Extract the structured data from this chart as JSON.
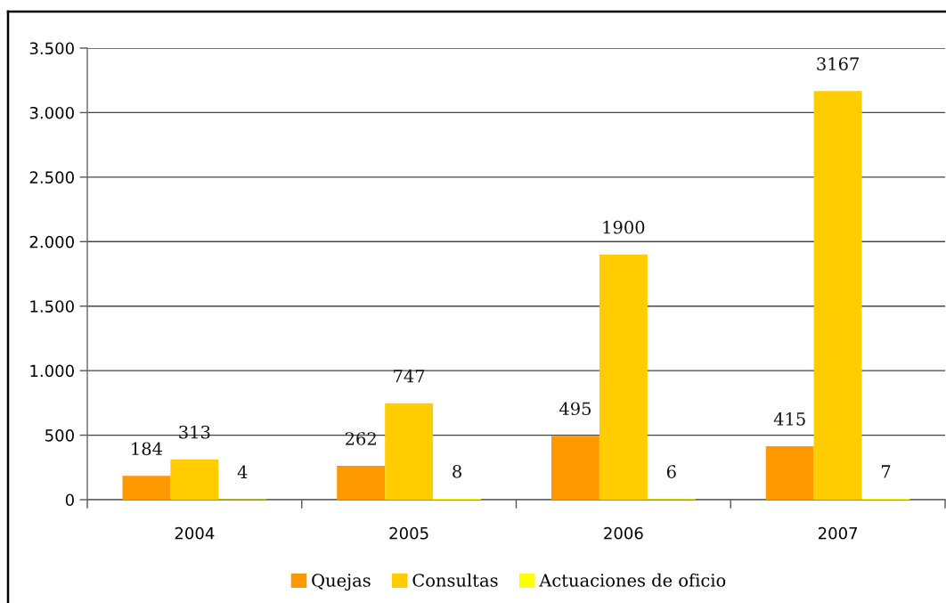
{
  "chart_data": {
    "type": "bar",
    "categories": [
      "2004",
      "2005",
      "2006",
      "2007"
    ],
    "series": [
      {
        "name": "Quejas",
        "color": "#ff9900",
        "values": [
          184,
          262,
          495,
          415
        ]
      },
      {
        "name": "Consultas",
        "color": "#ffcc00",
        "values": [
          313,
          747,
          1900,
          3167
        ]
      },
      {
        "name": "Actuaciones de oficio",
        "color": "#ffff00",
        "values": [
          4,
          8,
          6,
          7
        ]
      }
    ],
    "ylim": [
      0,
      3500
    ],
    "yticks": [
      0,
      500,
      {
        "value": 1000,
        "label": "1.000"
      },
      {
        "value": 1500,
        "label": "1.500"
      },
      {
        "value": 2000,
        "label": "2.000"
      },
      {
        "value": 2500,
        "label": "2.500"
      },
      {
        "value": 3000,
        "label": "3.000"
      },
      {
        "value": 3500,
        "label": "3.500"
      }
    ],
    "grid": "y",
    "legend": "bottom",
    "data_labels": true
  }
}
